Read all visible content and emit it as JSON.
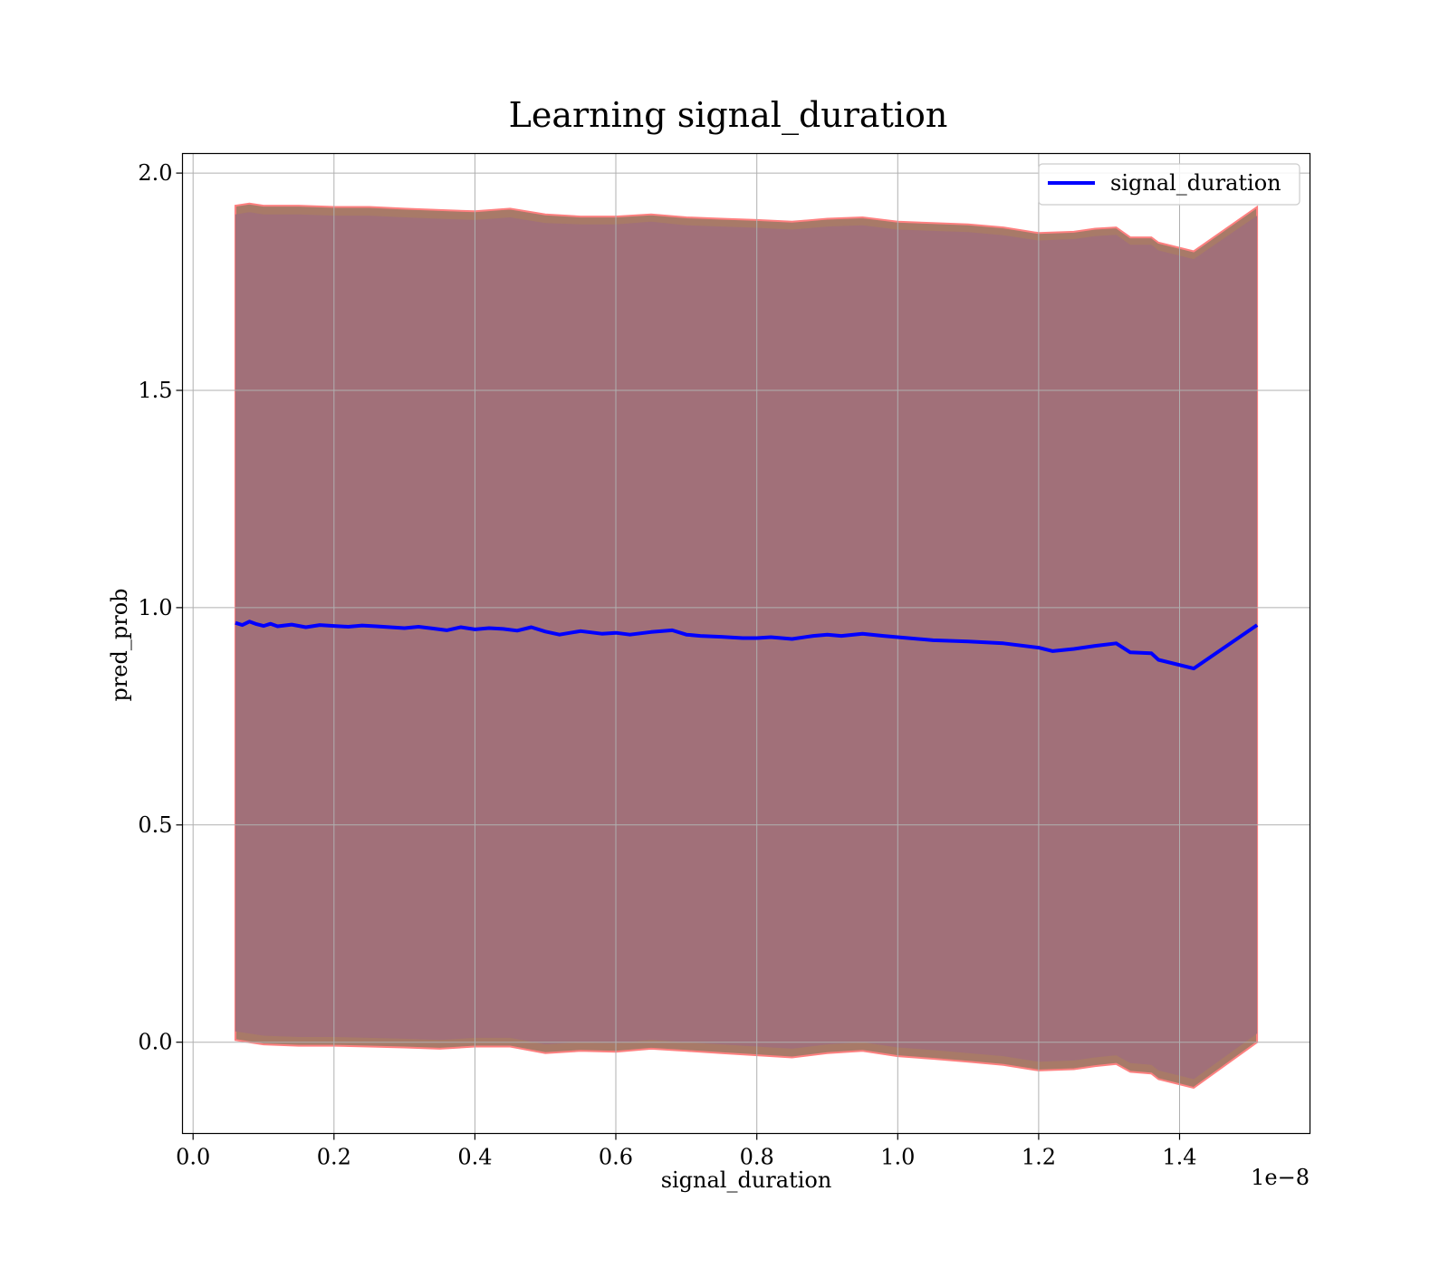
{
  "chart_data": {
    "type": "line",
    "title": "Learning signal_duration",
    "xlabel": "signal_duration",
    "ylabel": "pred_prob",
    "x_offset_text": "1e−8",
    "xlim": [
      -0.015,
      1.585
    ],
    "ylim": [
      -0.21,
      2.045
    ],
    "x_ticks": [
      0.0,
      0.2,
      0.4,
      0.6,
      0.8,
      1.0,
      1.2,
      1.4
    ],
    "x_tick_labels": [
      "0.0",
      "0.2",
      "0.4",
      "0.6",
      "0.8",
      "1.0",
      "1.2",
      "1.4"
    ],
    "y_ticks": [
      0.0,
      0.5,
      1.0,
      1.5,
      2.0
    ],
    "y_tick_labels": [
      "0.0",
      "0.5",
      "1.0",
      "1.5",
      "2.0"
    ],
    "grid": true,
    "legend_position": "upper right",
    "series": [
      {
        "name": "signal_duration",
        "color": "#0000ff",
        "x": [
          0.06,
          0.07,
          0.08,
          0.09,
          0.1,
          0.11,
          0.12,
          0.14,
          0.16,
          0.18,
          0.2,
          0.22,
          0.24,
          0.26,
          0.28,
          0.3,
          0.32,
          0.34,
          0.36,
          0.38,
          0.4,
          0.42,
          0.44,
          0.46,
          0.48,
          0.5,
          0.52,
          0.55,
          0.58,
          0.6,
          0.62,
          0.65,
          0.68,
          0.7,
          0.72,
          0.75,
          0.78,
          0.8,
          0.82,
          0.85,
          0.88,
          0.9,
          0.92,
          0.95,
          0.98,
          1.0,
          1.05,
          1.1,
          1.15,
          1.2,
          1.22,
          1.25,
          1.28,
          1.31,
          1.33,
          1.36,
          1.37,
          1.42,
          1.51
        ],
        "y": [
          0.965,
          0.96,
          0.968,
          0.962,
          0.958,
          0.963,
          0.957,
          0.961,
          0.955,
          0.96,
          0.958,
          0.956,
          0.959,
          0.957,
          0.955,
          0.953,
          0.956,
          0.952,
          0.948,
          0.955,
          0.95,
          0.953,
          0.951,
          0.947,
          0.955,
          0.945,
          0.938,
          0.946,
          0.94,
          0.942,
          0.938,
          0.944,
          0.948,
          0.938,
          0.935,
          0.933,
          0.93,
          0.93,
          0.932,
          0.928,
          0.935,
          0.938,
          0.935,
          0.94,
          0.935,
          0.932,
          0.925,
          0.922,
          0.918,
          0.908,
          0.9,
          0.905,
          0.912,
          0.918,
          0.897,
          0.895,
          0.88,
          0.86,
          0.96
        ]
      }
    ],
    "bands": [
      {
        "x": [
          0.06,
          0.08,
          0.1,
          0.15,
          0.2,
          0.25,
          0.3,
          0.35,
          0.4,
          0.45,
          0.5,
          0.55,
          0.6,
          0.65,
          0.7,
          0.75,
          0.8,
          0.85,
          0.9,
          0.95,
          1.0,
          1.05,
          1.1,
          1.15,
          1.2,
          1.25,
          1.28,
          1.31,
          1.33,
          1.36,
          1.37,
          1.42,
          1.51
        ],
        "upper": [
          1.925,
          1.93,
          1.925,
          1.925,
          1.922,
          1.922,
          1.918,
          1.915,
          1.912,
          1.918,
          1.905,
          1.9,
          1.9,
          1.905,
          1.898,
          1.895,
          1.892,
          1.888,
          1.895,
          1.898,
          1.888,
          1.885,
          1.882,
          1.875,
          1.862,
          1.865,
          1.872,
          1.875,
          1.852,
          1.852,
          1.84,
          1.82,
          1.922
        ],
        "lower": [
          0.005,
          0.0,
          -0.005,
          -0.008,
          -0.008,
          -0.01,
          -0.012,
          -0.015,
          -0.01,
          -0.01,
          -0.025,
          -0.02,
          -0.022,
          -0.015,
          -0.02,
          -0.025,
          -0.03,
          -0.035,
          -0.025,
          -0.02,
          -0.032,
          -0.038,
          -0.045,
          -0.052,
          -0.065,
          -0.062,
          -0.055,
          -0.05,
          -0.068,
          -0.072,
          -0.085,
          -0.105,
          0.0
        ],
        "edge_color": "#ff8080",
        "fill_color": "#a87a68"
      },
      {
        "x": [
          0.06,
          0.08,
          0.1,
          0.15,
          0.2,
          0.25,
          0.3,
          0.35,
          0.4,
          0.45,
          0.5,
          0.55,
          0.6,
          0.65,
          0.7,
          0.75,
          0.8,
          0.85,
          0.9,
          0.95,
          1.0,
          1.05,
          1.1,
          1.15,
          1.2,
          1.25,
          1.28,
          1.31,
          1.33,
          1.36,
          1.37,
          1.42,
          1.51
        ],
        "upper": [
          1.905,
          1.91,
          1.905,
          1.905,
          1.902,
          1.902,
          1.898,
          1.895,
          1.892,
          1.898,
          1.885,
          1.882,
          1.882,
          1.888,
          1.88,
          1.877,
          1.874,
          1.87,
          1.877,
          1.88,
          1.87,
          1.867,
          1.864,
          1.857,
          1.845,
          1.848,
          1.855,
          1.858,
          1.835,
          1.835,
          1.822,
          1.802,
          1.902
        ],
        "lower": [
          0.025,
          0.02,
          0.015,
          0.012,
          0.012,
          0.01,
          0.008,
          0.005,
          0.01,
          0.01,
          -0.005,
          0.0,
          -0.002,
          0.005,
          0.0,
          -0.005,
          -0.01,
          -0.015,
          -0.005,
          0.0,
          -0.012,
          -0.018,
          -0.025,
          -0.032,
          -0.045,
          -0.042,
          -0.035,
          -0.03,
          -0.048,
          -0.052,
          -0.065,
          -0.085,
          0.02
        ],
        "fill_color": "#a17079"
      }
    ]
  }
}
